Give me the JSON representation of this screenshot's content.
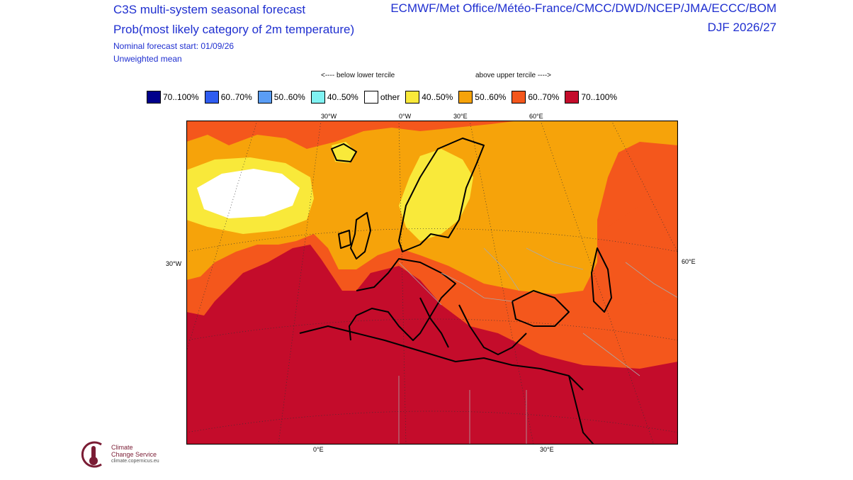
{
  "header": {
    "title_line1": "C3S multi-system seasonal forecast",
    "title_line2": "Prob(most likely category of 2m temperature)",
    "systems": "ECMWF/Met Office/Météo-France/CMCC/DWD/NCEP/JMA/ECCC/BOM",
    "season": "DJF 2026/27",
    "forecast_start": "Nominal forecast start: 01/09/26",
    "mean_type": "Unweighted mean"
  },
  "legend": {
    "below_label": "<---- below lower tercile",
    "above_label": "above upper tercile ---->",
    "items": [
      {
        "label": "70..100%",
        "color": "#00008b"
      },
      {
        "label": "60..70%",
        "color": "#2f5cf0"
      },
      {
        "label": "50..60%",
        "color": "#5a9df5"
      },
      {
        "label": "40..50%",
        "color": "#7ff2f2"
      },
      {
        "label": "other",
        "color": "#ffffff"
      },
      {
        "label": "40..50%",
        "color": "#f9e93a"
      },
      {
        "label": "50..60%",
        "color": "#f6a30a"
      },
      {
        "label": "60..70%",
        "color": "#f4571c"
      },
      {
        "label": "70..100%",
        "color": "#c40c2b"
      }
    ]
  },
  "map": {
    "top_labels": [
      "30°W",
      "0°W",
      "30°E",
      "60°E"
    ],
    "bottom_labels": [
      "0°E",
      "30°E"
    ],
    "left_label": "30°W",
    "right_label": "60°E"
  },
  "logo": {
    "line1": "Climate",
    "line2": "Change Service",
    "url": "climate.copernicus.eu"
  }
}
